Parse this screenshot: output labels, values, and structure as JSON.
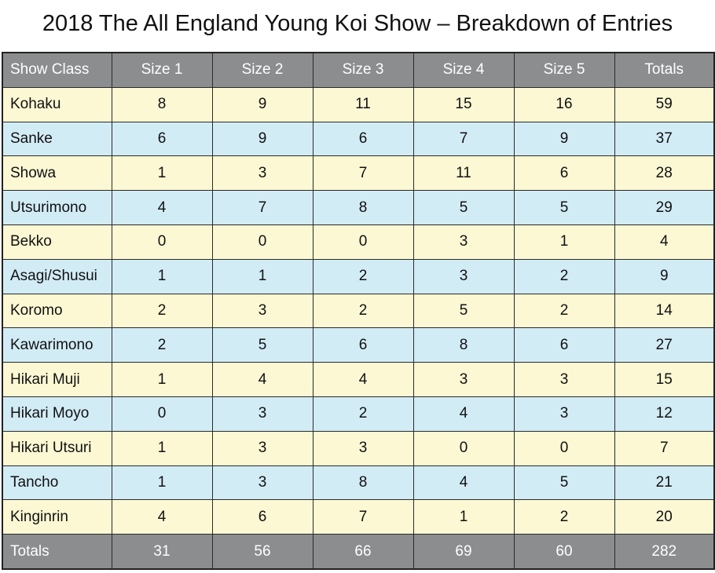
{
  "title": "2018 The All England Young Koi Show – Breakdown of Entries",
  "colors": {
    "header_bg": "#8b8d8f",
    "row_yellow": "#fcf8d4",
    "row_blue": "#d2ecf6",
    "border": "#2a2a2a"
  },
  "table": {
    "headers": [
      "Show Class",
      "Size 1",
      "Size 2",
      "Size 3",
      "Size 4",
      "Size 5",
      "Totals"
    ],
    "rows": [
      [
        "Kohaku",
        "8",
        "9",
        "11",
        "15",
        "16",
        "59"
      ],
      [
        "Sanke",
        "6",
        "9",
        "6",
        "7",
        "9",
        "37"
      ],
      [
        "Showa",
        "1",
        "3",
        "7",
        "11",
        "6",
        "28"
      ],
      [
        "Utsurimono",
        "4",
        "7",
        "8",
        "5",
        "5",
        "29"
      ],
      [
        "Bekko",
        "0",
        "0",
        "0",
        "3",
        "1",
        "4"
      ],
      [
        "Asagi/Shusui",
        "1",
        "1",
        "2",
        "3",
        "2",
        "9"
      ],
      [
        "Koromo",
        "2",
        "3",
        "2",
        "5",
        "2",
        "14"
      ],
      [
        "Kawarimono",
        "2",
        "5",
        "6",
        "8",
        "6",
        "27"
      ],
      [
        "Hikari Muji",
        "1",
        "4",
        "4",
        "3",
        "3",
        "15"
      ],
      [
        "Hikari Moyo",
        "0",
        "3",
        "2",
        "4",
        "3",
        "12"
      ],
      [
        "Hikari Utsuri",
        "1",
        "3",
        "3",
        "0",
        "0",
        "7"
      ],
      [
        "Tancho",
        "1",
        "3",
        "8",
        "4",
        "5",
        "21"
      ],
      [
        "Kinginrin",
        "4",
        "6",
        "7",
        "1",
        "2",
        "20"
      ]
    ],
    "totals": [
      "Totals",
      "31",
      "56",
      "66",
      "69",
      "60",
      "282"
    ]
  }
}
